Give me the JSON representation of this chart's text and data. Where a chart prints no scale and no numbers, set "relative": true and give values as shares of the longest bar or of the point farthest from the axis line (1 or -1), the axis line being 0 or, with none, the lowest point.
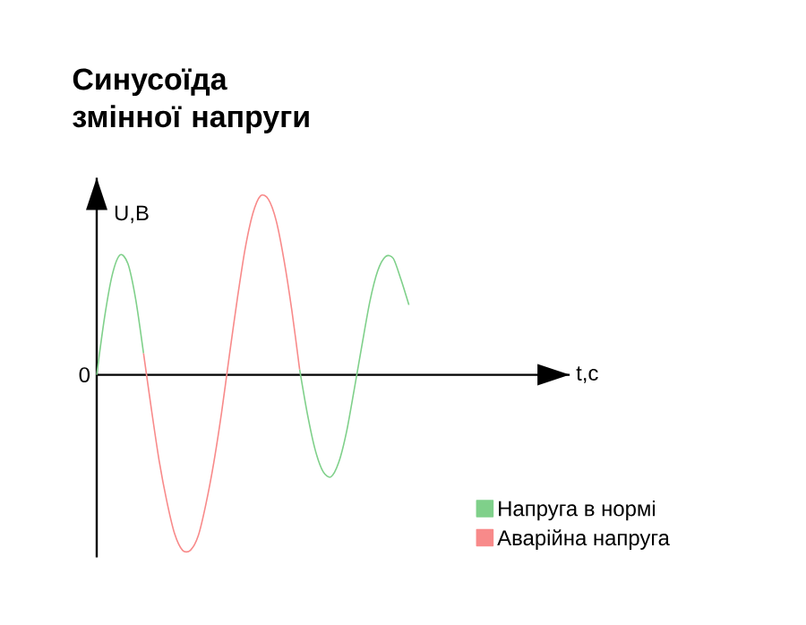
{
  "chart_data": {
    "type": "line",
    "title": "Синусоїда змінної напруги",
    "ylabel": "U,В",
    "annotations": [
      "0",
      "t,с"
    ],
    "relative": true,
    "legend": "bottom right",
    "marker": "none",
    "categories": [
      null,
      null,
      null,
      null,
      null,
      null,
      null,
      null,
      null,
      null,
      null,
      null,
      null,
      null,
      null,
      null,
      null,
      null,
      null,
      null,
      null,
      null,
      null,
      null,
      null,
      null,
      null,
      null,
      null,
      null,
      null,
      null,
      null,
      null,
      null,
      null,
      null,
      null,
      null,
      null,
      null
    ],
    "series": [
      {
        "name": "Напруга в нормі",
        "color": "#7fd08a",
        "values": [
          0,
          0.32,
          0.56,
          0.67,
          0.62,
          0.42,
          0.12,
          null,
          null,
          null,
          null,
          null,
          null,
          null,
          null,
          null,
          null,
          null,
          null,
          null,
          null,
          null,
          null,
          null,
          null,
          null,
          0.03,
          -0.22,
          -0.42,
          -0.54,
          -0.57,
          -0.49,
          -0.32,
          -0.08,
          0.17,
          0.41,
          0.58,
          0.66,
          0.65,
          0.53,
          0.39
        ]
      },
      {
        "name": "Аварійна напруга",
        "color": "#f88a8a",
        "values": [
          null,
          null,
          null,
          null,
          null,
          null,
          0.12,
          -0.19,
          -0.48,
          -0.71,
          -0.89,
          -0.98,
          -0.98,
          -0.9,
          -0.72,
          -0.49,
          -0.21,
          0.11,
          0.42,
          0.7,
          0.9,
          1.0,
          0.98,
          0.86,
          0.64,
          0.36,
          0.03,
          null,
          null,
          null,
          null,
          null,
          null,
          null,
          null,
          null,
          null,
          null,
          null,
          null,
          null
        ]
      }
    ]
  }
}
